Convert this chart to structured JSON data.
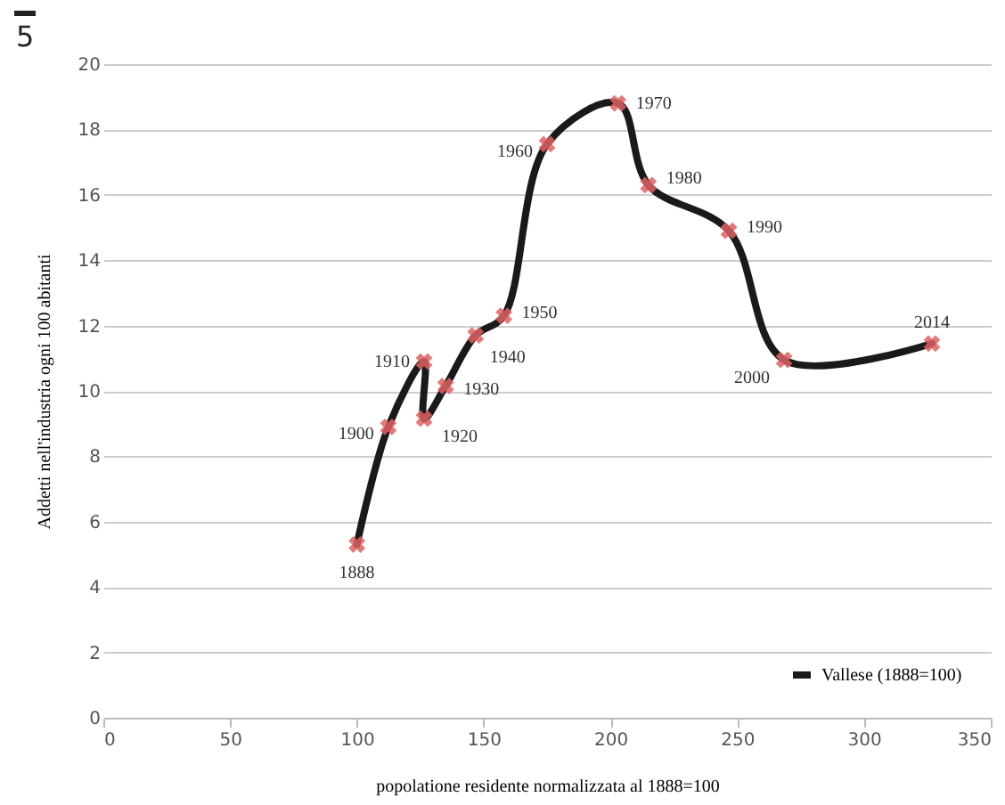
{
  "chart_data": {
    "type": "line",
    "xlabel": "popolatione residente normalizzata al 1888=100",
    "ylabel": "Addetti nell'industria ogni 100 abitanti",
    "series": [
      {
        "name": "Vallese (1888=100)",
        "color": "#1a1a1a",
        "x": [
          100,
          112.4,
          126.5,
          126.5,
          135,
          146.8,
          158,
          175,
          203,
          215,
          246.7,
          268.5,
          326.8
        ],
        "values": [
          5.3,
          8.9,
          10.9,
          9.15,
          10.15,
          11.7,
          12.3,
          17.55,
          18.8,
          16.3,
          14.9,
          10.95,
          11.45
        ]
      }
    ],
    "marker": "cross",
    "line_style": "solid",
    "xlim": [
      0,
      350
    ],
    "xticks": [
      0,
      50,
      100,
      150,
      200,
      250,
      300,
      350
    ],
    "ylim": [
      0,
      20
    ],
    "yticks": [
      0,
      2,
      4,
      6,
      8,
      10,
      12,
      14,
      16,
      18,
      20
    ],
    "grid": "y",
    "legend": "bottom right",
    "annotations": [
      {
        "text": "1888",
        "x": 100,
        "y": 5.3
      },
      {
        "text": "1900",
        "x": 112.4,
        "y": 8.9
      },
      {
        "text": "1910",
        "x": 126.5,
        "y": 10.9
      },
      {
        "text": "1920",
        "x": 126.5,
        "y": 9.15
      },
      {
        "text": "1930",
        "x": 135,
        "y": 10.15
      },
      {
        "text": "1940",
        "x": 146.8,
        "y": 11.7
      },
      {
        "text": "1950",
        "x": 158,
        "y": 12.3
      },
      {
        "text": "1960",
        "x": 175,
        "y": 17.55
      },
      {
        "text": "1970",
        "x": 203,
        "y": 18.8
      },
      {
        "text": "1980",
        "x": 215,
        "y": 16.3
      },
      {
        "text": "1990",
        "x": 246.7,
        "y": 14.9
      },
      {
        "text": "2000",
        "x": 268.5,
        "y": 10.95
      },
      {
        "text": "2014",
        "x": 326.8,
        "y": 11.45
      },
      "5"
    ]
  }
}
